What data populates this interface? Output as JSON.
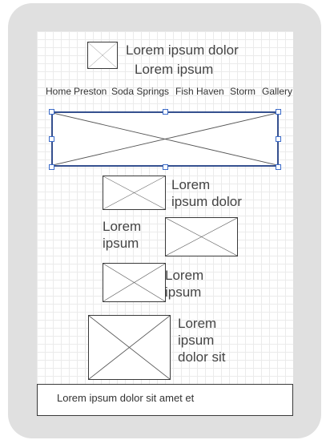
{
  "header": {
    "title_line1": "Lorem ipsum dolor",
    "title_line2": "Lorem ipsum"
  },
  "nav": {
    "items": [
      "Home",
      "Preston",
      "Soda Springs",
      "Fish Haven",
      "Storm",
      "Gallery"
    ]
  },
  "content": {
    "block1_line1": "Lorem",
    "block1_line2": "ipsum dolor",
    "block2_line1": "Lorem",
    "block2_line2": "ipsum",
    "block3_line1": "Lorem",
    "block3_line2": "ipsum",
    "block4_line1": "Lorem",
    "block4_line2": "ipsum",
    "block4_line3": "dolor sit"
  },
  "footer": {
    "text": "Lorem ipsum dolor sit amet et"
  },
  "colors": {
    "frame": "#e0e0e0",
    "selection": "#35508f",
    "handle": "#3b6bc9"
  }
}
